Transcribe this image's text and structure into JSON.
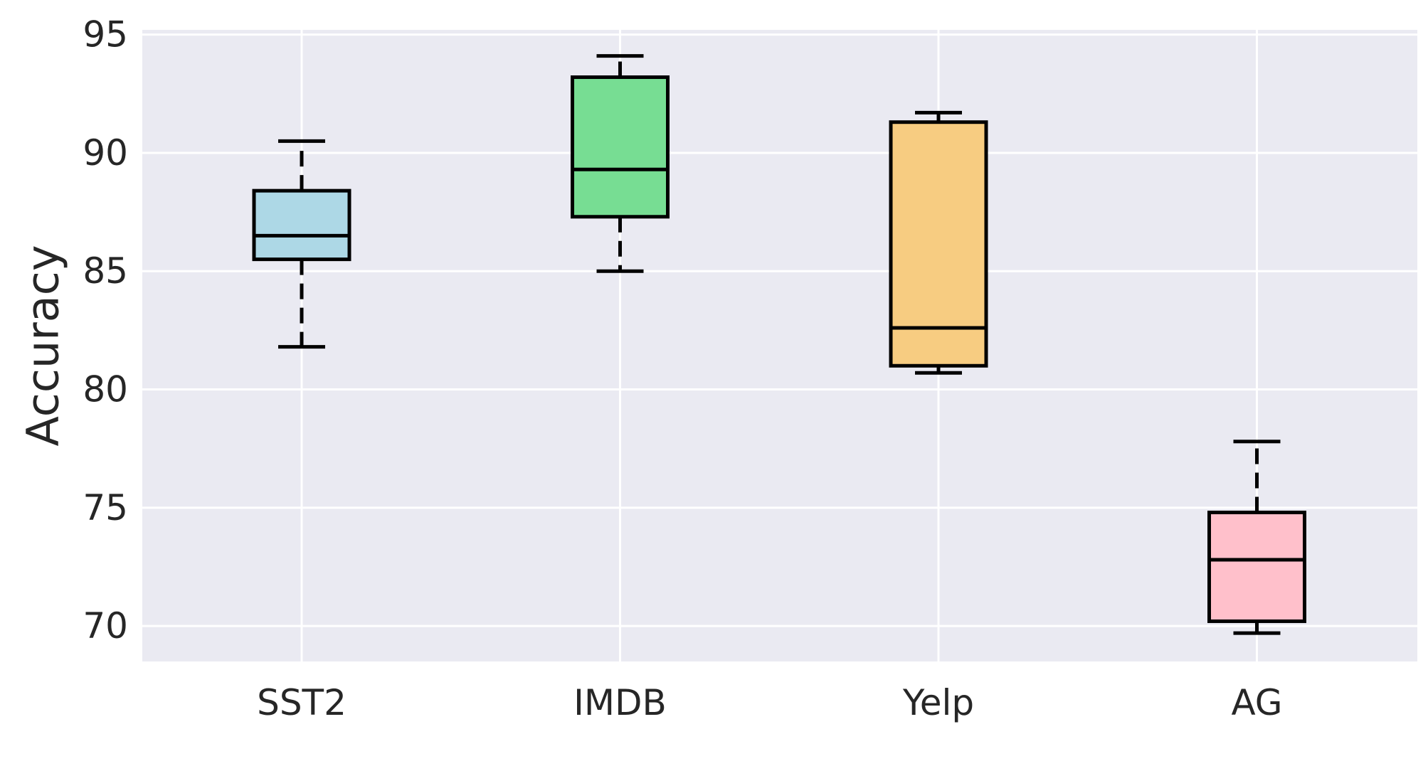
{
  "chart_data": {
    "type": "box",
    "title": "",
    "xlabel": "",
    "ylabel": "Accuracy",
    "ylim": [
      68.5,
      95.2
    ],
    "yticks": [
      70,
      75,
      80,
      85,
      90,
      95
    ],
    "ytick_labels": [
      "70",
      "75",
      "80",
      "85",
      "90",
      "95"
    ],
    "grid": true,
    "legend": "none",
    "background": "#eaeaf2",
    "categories": [
      "SST2",
      "IMDB",
      "Yelp",
      "AG"
    ],
    "boxes": [
      {
        "category": "SST2",
        "whisker_low": 81.8,
        "q1": 85.5,
        "median": 86.5,
        "q3": 88.4,
        "whisker_high": 90.5,
        "color": "#add8e6"
      },
      {
        "category": "IMDB",
        "whisker_low": 85.0,
        "q1": 87.3,
        "median": 89.3,
        "q3": 93.2,
        "whisker_high": 94.1,
        "color": "#77dd93"
      },
      {
        "category": "Yelp",
        "whisker_low": 80.7,
        "q1": 81.0,
        "median": 82.6,
        "q3": 91.3,
        "whisker_high": 91.7,
        "color": "#f7cc81"
      },
      {
        "category": "AG",
        "whisker_low": 69.7,
        "q1": 70.2,
        "median": 72.8,
        "q3": 74.8,
        "whisker_high": 77.8,
        "color": "#ffc0cb"
      }
    ]
  }
}
